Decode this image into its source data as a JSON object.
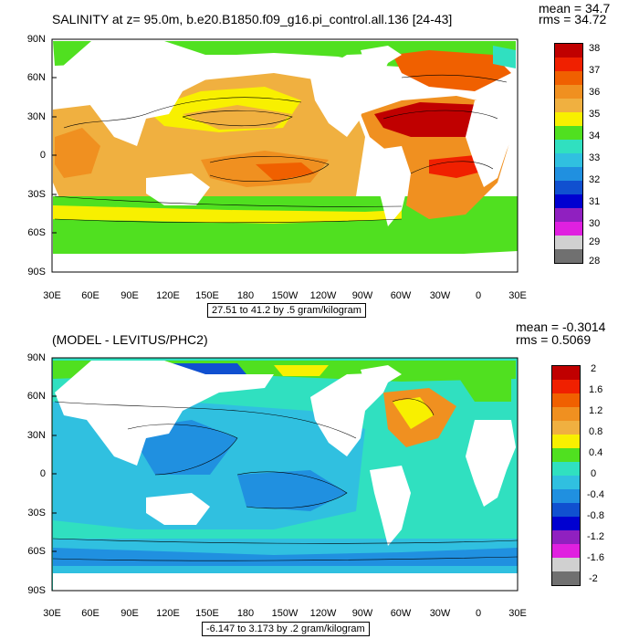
{
  "top": {
    "title": "SALINITY at z=  95.0m, b.e20.B1850.f09_g16.pi_control.all.136 [24-43]",
    "mean": "mean = 34.7",
    "rms": "rms = 34.72",
    "range_note": "27.51 to 41.2 by .5 gram/kilogram",
    "colorbar": {
      "labels": [
        "38",
        "37",
        "36",
        "35",
        "34",
        "33",
        "32",
        "31",
        "30",
        "29",
        "28"
      ],
      "colors": [
        "#c00000",
        "#f02000",
        "#f06000",
        "#f09020",
        "#f0b040",
        "#f8f000",
        "#50e020",
        "#30e0c0",
        "#30c0e0",
        "#2090e0",
        "#1050d0",
        "#0000d0",
        "#9020c0",
        "#e020e0",
        "#d0d0d0",
        "#707070"
      ]
    }
  },
  "bottom": {
    "title": "(MODEL - LEVITUS/PHC2)",
    "mean": "mean = -0.3014",
    "rms": "rms = 0.5069",
    "range_note": "-6.147 to 3.173 by .2 gram/kilogram",
    "colorbar": {
      "labels": [
        "2",
        "1.6",
        "1.2",
        "0.8",
        "0.4",
        "0",
        "-0.4",
        "-0.8",
        "-1.2",
        "-1.6",
        "-2"
      ],
      "colors": [
        "#c00000",
        "#f02000",
        "#f06000",
        "#f09020",
        "#f0b040",
        "#f8f000",
        "#50e020",
        "#30e0c0",
        "#30c0e0",
        "#2090e0",
        "#1050d0",
        "#0000d0",
        "#9020c0",
        "#e020e0",
        "#d0d0d0",
        "#707070"
      ]
    }
  },
  "lat_labels": [
    "90N",
    "60N",
    "30N",
    "0",
    "30S",
    "60S",
    "90S"
  ],
  "lon_labels": [
    "30E",
    "60E",
    "90E",
    "120E",
    "150E",
    "180",
    "150W",
    "120W",
    "90W",
    "60W",
    "30W",
    "0",
    "30E"
  ]
}
